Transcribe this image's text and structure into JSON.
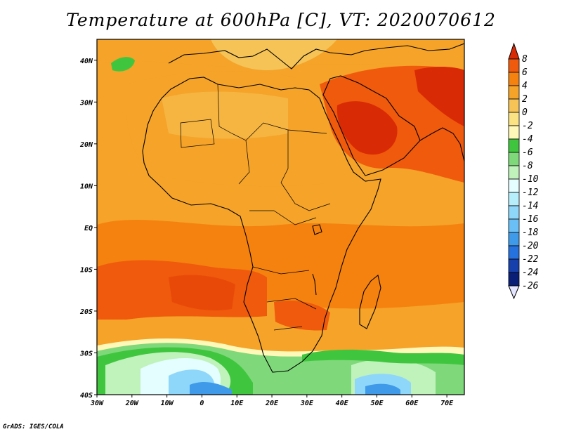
{
  "title": "Temperature at 600hPa [C], VT: 2020070612",
  "credit": "GrADS: IGES/COLA",
  "map": {
    "lon_range": [
      -30,
      75
    ],
    "lat_range": [
      -40,
      45
    ],
    "lon_ticks": [
      "30W",
      "20W",
      "10W",
      "0",
      "10E",
      "20E",
      "30E",
      "40E",
      "50E",
      "60E",
      "70E"
    ],
    "lat_ticks": [
      "40N",
      "30N",
      "20N",
      "10N",
      "EQ",
      "10S",
      "20S",
      "30S",
      "40S"
    ]
  },
  "colorbar": {
    "labels": [
      "8",
      "6",
      "4",
      "2",
      "0",
      "-2",
      "-4",
      "-6",
      "-8",
      "-10",
      "-12",
      "-14",
      "-16",
      "-18",
      "-20",
      "-22",
      "-24",
      "-26"
    ],
    "colors": [
      "#d92a06",
      "#f05a0c",
      "#f5820f",
      "#f5a329",
      "#f5c356",
      "#fbe383",
      "#fff8b8",
      "#40c63e",
      "#7fd97a",
      "#bff3bb",
      "#e4fdff",
      "#b6eefc",
      "#8fd7fa",
      "#6ac0f6",
      "#3f9be9",
      "#2571dd",
      "#1740ad",
      "#0a1e78",
      "#e5e5ff"
    ]
  }
}
